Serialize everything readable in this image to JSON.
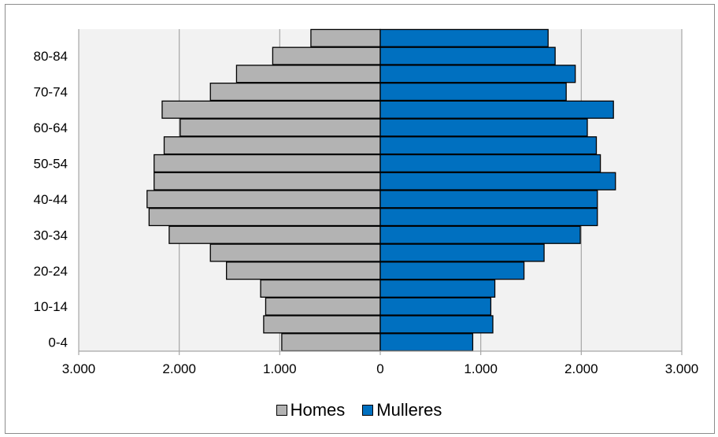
{
  "chart_data": {
    "type": "bar",
    "orientation": "horizontal-population-pyramid",
    "categories": [
      "0-4",
      "5-9",
      "10-14",
      "15-19",
      "20-24",
      "25-29",
      "30-34",
      "35-39",
      "40-44",
      "45-49",
      "50-54",
      "55-59",
      "60-64",
      "65-69",
      "70-74",
      "75-79",
      "80-84",
      "85+"
    ],
    "category_labels_shown": [
      "0-4",
      "10-14",
      "20-24",
      "30-34",
      "40-44",
      "50-54",
      "60-64",
      "70-74",
      "80-84"
    ],
    "series": [
      {
        "name": "Homes",
        "color": "#b3b3b3",
        "values": [
          980,
          1160,
          1140,
          1190,
          1530,
          1690,
          2100,
          2300,
          2320,
          2250,
          2250,
          2150,
          1990,
          2170,
          1690,
          1430,
          1070,
          690
        ]
      },
      {
        "name": "Mulleres",
        "color": "#0070c0",
        "values": [
          920,
          1120,
          1100,
          1140,
          1430,
          1630,
          1990,
          2160,
          2160,
          2340,
          2190,
          2150,
          2060,
          2320,
          1850,
          1940,
          1740,
          1670
        ]
      }
    ],
    "x_ticks": [
      "3.000",
      "2.000",
      "1.000",
      "0",
      "1.000",
      "2.000",
      "3.000"
    ],
    "xlim": [
      -3000,
      3000
    ],
    "grid": "vertical",
    "legend_position": "bottom",
    "plot_background": "#f2f2f2",
    "grid_color": "#a6a6a6"
  }
}
